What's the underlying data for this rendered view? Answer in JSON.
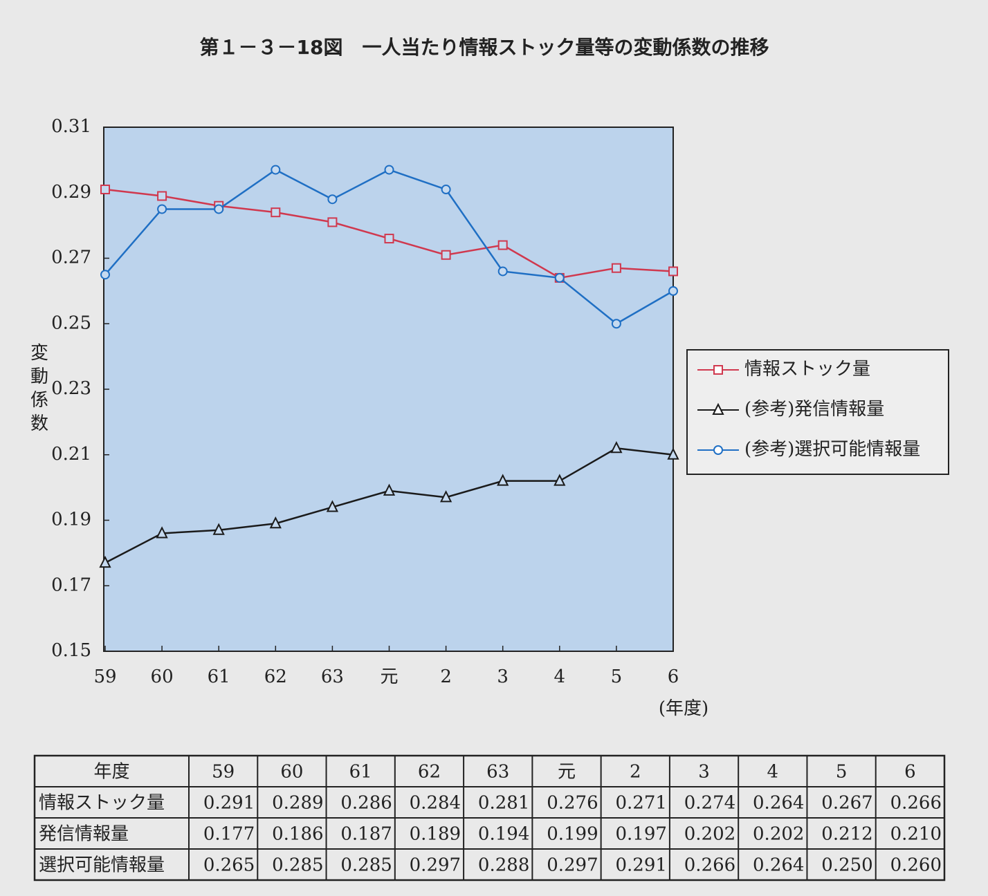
{
  "chart_data": {
    "type": "line",
    "title": "第１－３－18図　一人当たり情報ストック量等の変動係数の推移",
    "y_label": "変動係数",
    "x_label": "(年度)",
    "categories": [
      "59",
      "60",
      "61",
      "62",
      "63",
      "元",
      "2",
      "3",
      "4",
      "5",
      "6"
    ],
    "series": [
      {
        "name": "情報ストック量",
        "color": "#d0384e",
        "marker": "square",
        "values": [
          0.291,
          0.289,
          0.286,
          0.284,
          0.281,
          0.276,
          0.271,
          0.274,
          0.264,
          0.267,
          0.266
        ]
      },
      {
        "name": "(参考)発信情報量",
        "color": "#1a1a1a",
        "marker": "triangle",
        "values": [
          0.177,
          0.186,
          0.187,
          0.189,
          0.194,
          0.199,
          0.197,
          0.202,
          0.202,
          0.212,
          0.21
        ]
      },
      {
        "name": "(参考)選択可能情報量",
        "color": "#1f6fc4",
        "marker": "circle",
        "values": [
          0.265,
          0.285,
          0.285,
          0.297,
          0.288,
          0.297,
          0.291,
          0.266,
          0.264,
          0.25,
          0.26
        ]
      }
    ],
    "ylim": [
      0.15,
      0.31
    ],
    "yticks": [
      0.15,
      0.17,
      0.19,
      0.21,
      0.23,
      0.25,
      0.27,
      0.29,
      0.31
    ],
    "grid": false,
    "legend": "right"
  },
  "table": {
    "header": "年度",
    "rows": [
      [
        "情報ストック量",
        "0.291",
        "0.289",
        "0.286",
        "0.284",
        "0.281",
        "0.276",
        "0.271",
        "0.274",
        "0.264",
        "0.267",
        "0.266"
      ],
      [
        "発信情報量",
        "0.177",
        "0.186",
        "0.187",
        "0.189",
        "0.194",
        "0.199",
        "0.197",
        "0.202",
        "0.202",
        "0.212",
        "0.210"
      ],
      [
        "選択可能情報量",
        "0.265",
        "0.285",
        "0.285",
        "0.297",
        "0.288",
        "0.297",
        "0.291",
        "0.266",
        "0.264",
        "0.250",
        "0.260"
      ]
    ]
  }
}
